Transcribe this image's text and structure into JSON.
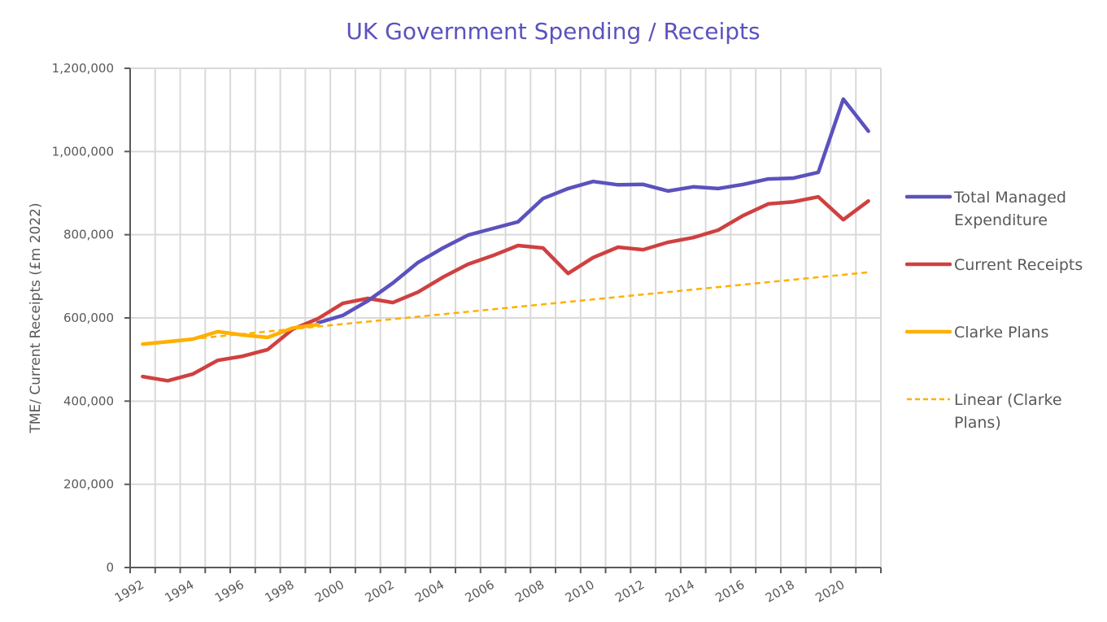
{
  "chart_data": {
    "type": "line",
    "title": "UK Government Spending / Receipts",
    "xlabel": "",
    "ylabel": "TME/ Current Receipts (£m 2022)",
    "ylim": [
      0,
      1200000
    ],
    "yticks": [
      0,
      200000,
      400000,
      600000,
      800000,
      1000000,
      1200000
    ],
    "ytick_labels": [
      "0",
      "200,000",
      "400,000",
      "600,000",
      "800,000",
      "1,000,000",
      "1,200,000"
    ],
    "x": [
      1992,
      1993,
      1994,
      1995,
      1996,
      1997,
      1998,
      1999,
      2000,
      2001,
      2002,
      2003,
      2004,
      2005,
      2006,
      2007,
      2008,
      2009,
      2010,
      2011,
      2012,
      2013,
      2014,
      2015,
      2016,
      2017,
      2018,
      2019,
      2020,
      2021
    ],
    "xtick_labels": [
      "1992",
      "1994",
      "1996",
      "1998",
      "2000",
      "2002",
      "2004",
      "2006",
      "2008",
      "2010",
      "2012",
      "2014",
      "2016",
      "2018",
      "2020"
    ],
    "grid": "both",
    "legend_position": "right",
    "series": [
      {
        "name": "Total Managed Expenditure",
        "color": "#5B52BD",
        "style": "solid",
        "values": [
          null,
          null,
          null,
          null,
          null,
          null,
          null,
          588000,
          606000,
          641000,
          684000,
          733000,
          768000,
          799000,
          815000,
          831000,
          887000,
          911000,
          928000,
          920000,
          921000,
          905000,
          915000,
          911000,
          921000,
          934000,
          936000,
          950000,
          1126000,
          1049000
        ]
      },
      {
        "name": "Current Receipts",
        "color": "#D04040",
        "style": "solid",
        "values": [
          459000,
          449000,
          465000,
          498000,
          508000,
          524000,
          573000,
          598000,
          635000,
          647000,
          637000,
          662000,
          698000,
          729000,
          750000,
          774000,
          768000,
          707000,
          745000,
          770000,
          764000,
          782000,
          793000,
          811000,
          846000,
          874000,
          879000,
          891000,
          836000,
          881000
        ]
      },
      {
        "name": "Clarke Plans",
        "color": "#FFB000",
        "style": "solid",
        "values": [
          537000,
          543000,
          549000,
          567000,
          559000,
          553000,
          576000,
          584000,
          null,
          null,
          null,
          null,
          null,
          null,
          null,
          null,
          null,
          null,
          null,
          null,
          null,
          null,
          null,
          null,
          null,
          null,
          null,
          null,
          null,
          null
        ]
      },
      {
        "name": "Linear (Clarke Plans)",
        "color": "#FFB000",
        "style": "dashed",
        "trendline_of": "Clarke Plans"
      }
    ]
  }
}
